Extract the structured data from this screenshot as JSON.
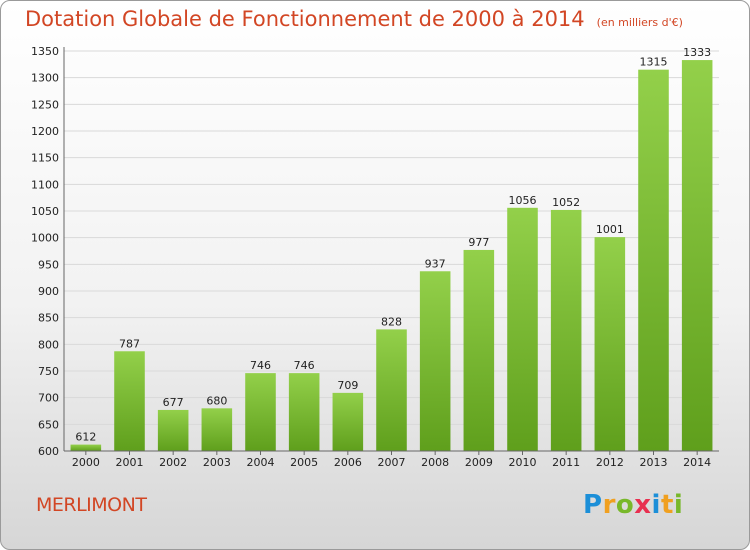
{
  "title": "Dotation Globale de Fonctionnement de 2000 à 2014",
  "subtitle": "(en milliers d'€)",
  "commune": "MERLIMONT",
  "logo": {
    "letters": [
      "P",
      "r",
      "o",
      "x",
      "i",
      "t",
      "i"
    ],
    "colors": [
      "#1c8fd8",
      "#f0a020",
      "#78b82a",
      "#e83050",
      "#1c8fd8",
      "#f0a020",
      "#78b82a"
    ]
  },
  "colors": {
    "bar": "#7fc23a",
    "title": "#d24624"
  },
  "chart_data": {
    "type": "bar",
    "title": "Dotation Globale de Fonctionnement de 2000 à 2014",
    "subtitle": "(en milliers d'€)",
    "categories": [
      "2000",
      "2001",
      "2002",
      "2003",
      "2004",
      "2005",
      "2006",
      "2007",
      "2008",
      "2009",
      "2010",
      "2011",
      "2012",
      "2013",
      "2014"
    ],
    "values": [
      612,
      787,
      677,
      680,
      746,
      746,
      709,
      828,
      937,
      977,
      1056,
      1052,
      1001,
      1315,
      1333
    ],
    "ylim": [
      600,
      1350
    ],
    "yticks": [
      600,
      650,
      700,
      750,
      800,
      850,
      900,
      950,
      1000,
      1050,
      1100,
      1150,
      1200,
      1250,
      1300,
      1350
    ],
    "grid": true,
    "xlabel": "",
    "ylabel": ""
  }
}
